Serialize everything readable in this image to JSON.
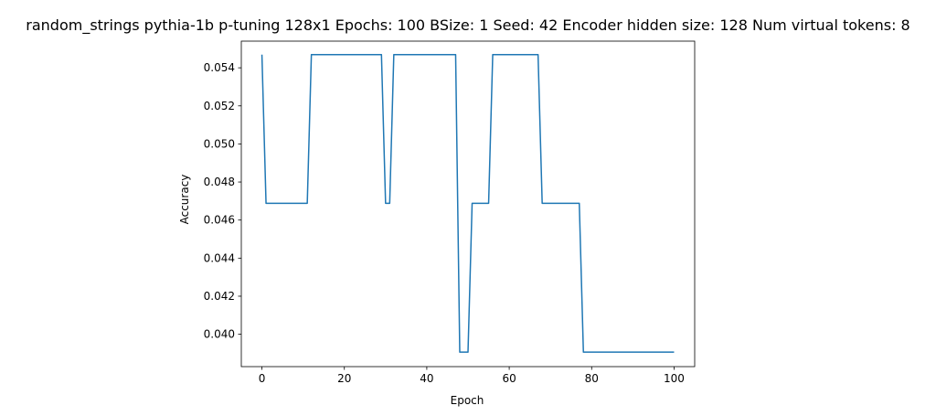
{
  "chart_data": {
    "type": "line",
    "title": "random_strings pythia-1b p-tuning 128x1 Epochs: 100 BSize: 1 Seed: 42 Encoder hidden size: 128 Num virtual tokens: 8",
    "xlabel": "Epoch",
    "ylabel": "Accuracy",
    "xlim": [
      -5,
      105
    ],
    "ylim": [
      0.0383,
      0.0554
    ],
    "xticks": [
      0,
      20,
      40,
      60,
      80,
      100
    ],
    "yticks": [
      0.04,
      0.042,
      0.044,
      0.046,
      0.048,
      0.05,
      0.052,
      0.054
    ],
    "ytick_labels": [
      "0.040",
      "0.042",
      "0.044",
      "0.046",
      "0.048",
      "0.050",
      "0.052",
      "0.054"
    ],
    "grid": false,
    "series": [
      {
        "color": "#1f77b4",
        "x": [
          0,
          1,
          11,
          12,
          29,
          30,
          31,
          32,
          47,
          48,
          50,
          51,
          55,
          56,
          67,
          68,
          77,
          78,
          100
        ],
        "y": [
          0.05469,
          0.04688,
          0.04688,
          0.05469,
          0.05469,
          0.04688,
          0.04688,
          0.05469,
          0.05469,
          0.03906,
          0.03906,
          0.04688,
          0.04688,
          0.05469,
          0.05469,
          0.04688,
          0.04688,
          0.03906,
          0.03906
        ]
      }
    ]
  }
}
